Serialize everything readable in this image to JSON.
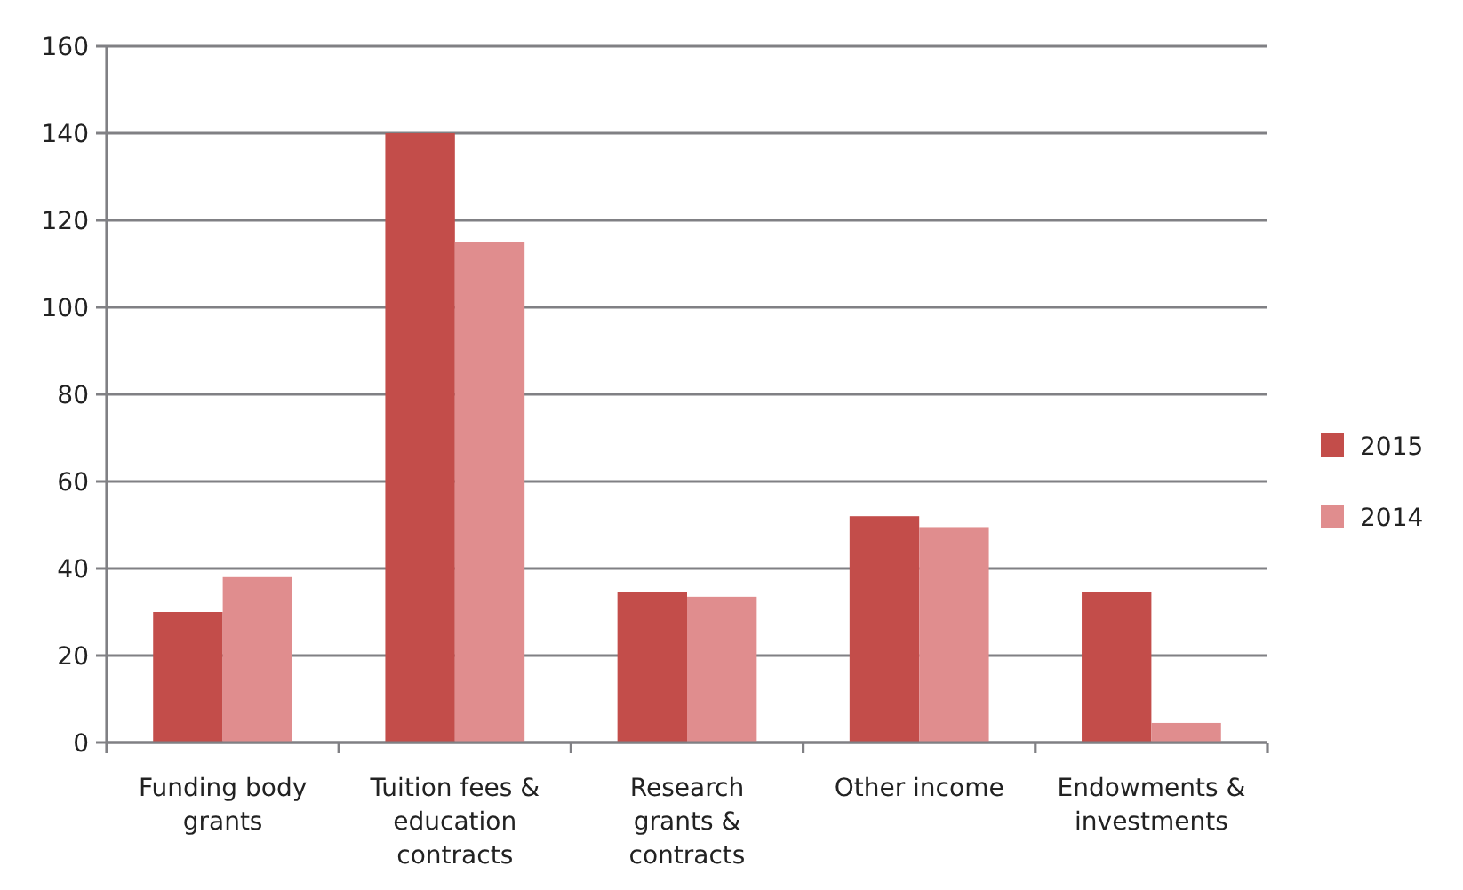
{
  "chart_data": {
    "type": "bar",
    "categories": [
      "Funding body grants",
      "Tuition fees & education contracts",
      "Research grants & contracts",
      "Other income",
      "Endowments & investments"
    ],
    "series": [
      {
        "name": "2015",
        "color": "#c34d4a",
        "values": [
          30,
          140,
          34.5,
          52,
          34.5
        ]
      },
      {
        "name": "2014",
        "color": "#e08d8e",
        "values": [
          38,
          115,
          33.5,
          49.5,
          4.5
        ]
      }
    ],
    "ylim": [
      0,
      160
    ],
    "yticks": [
      0,
      20,
      40,
      60,
      80,
      100,
      120,
      140,
      160
    ],
    "grid": "y",
    "legend": "right"
  }
}
